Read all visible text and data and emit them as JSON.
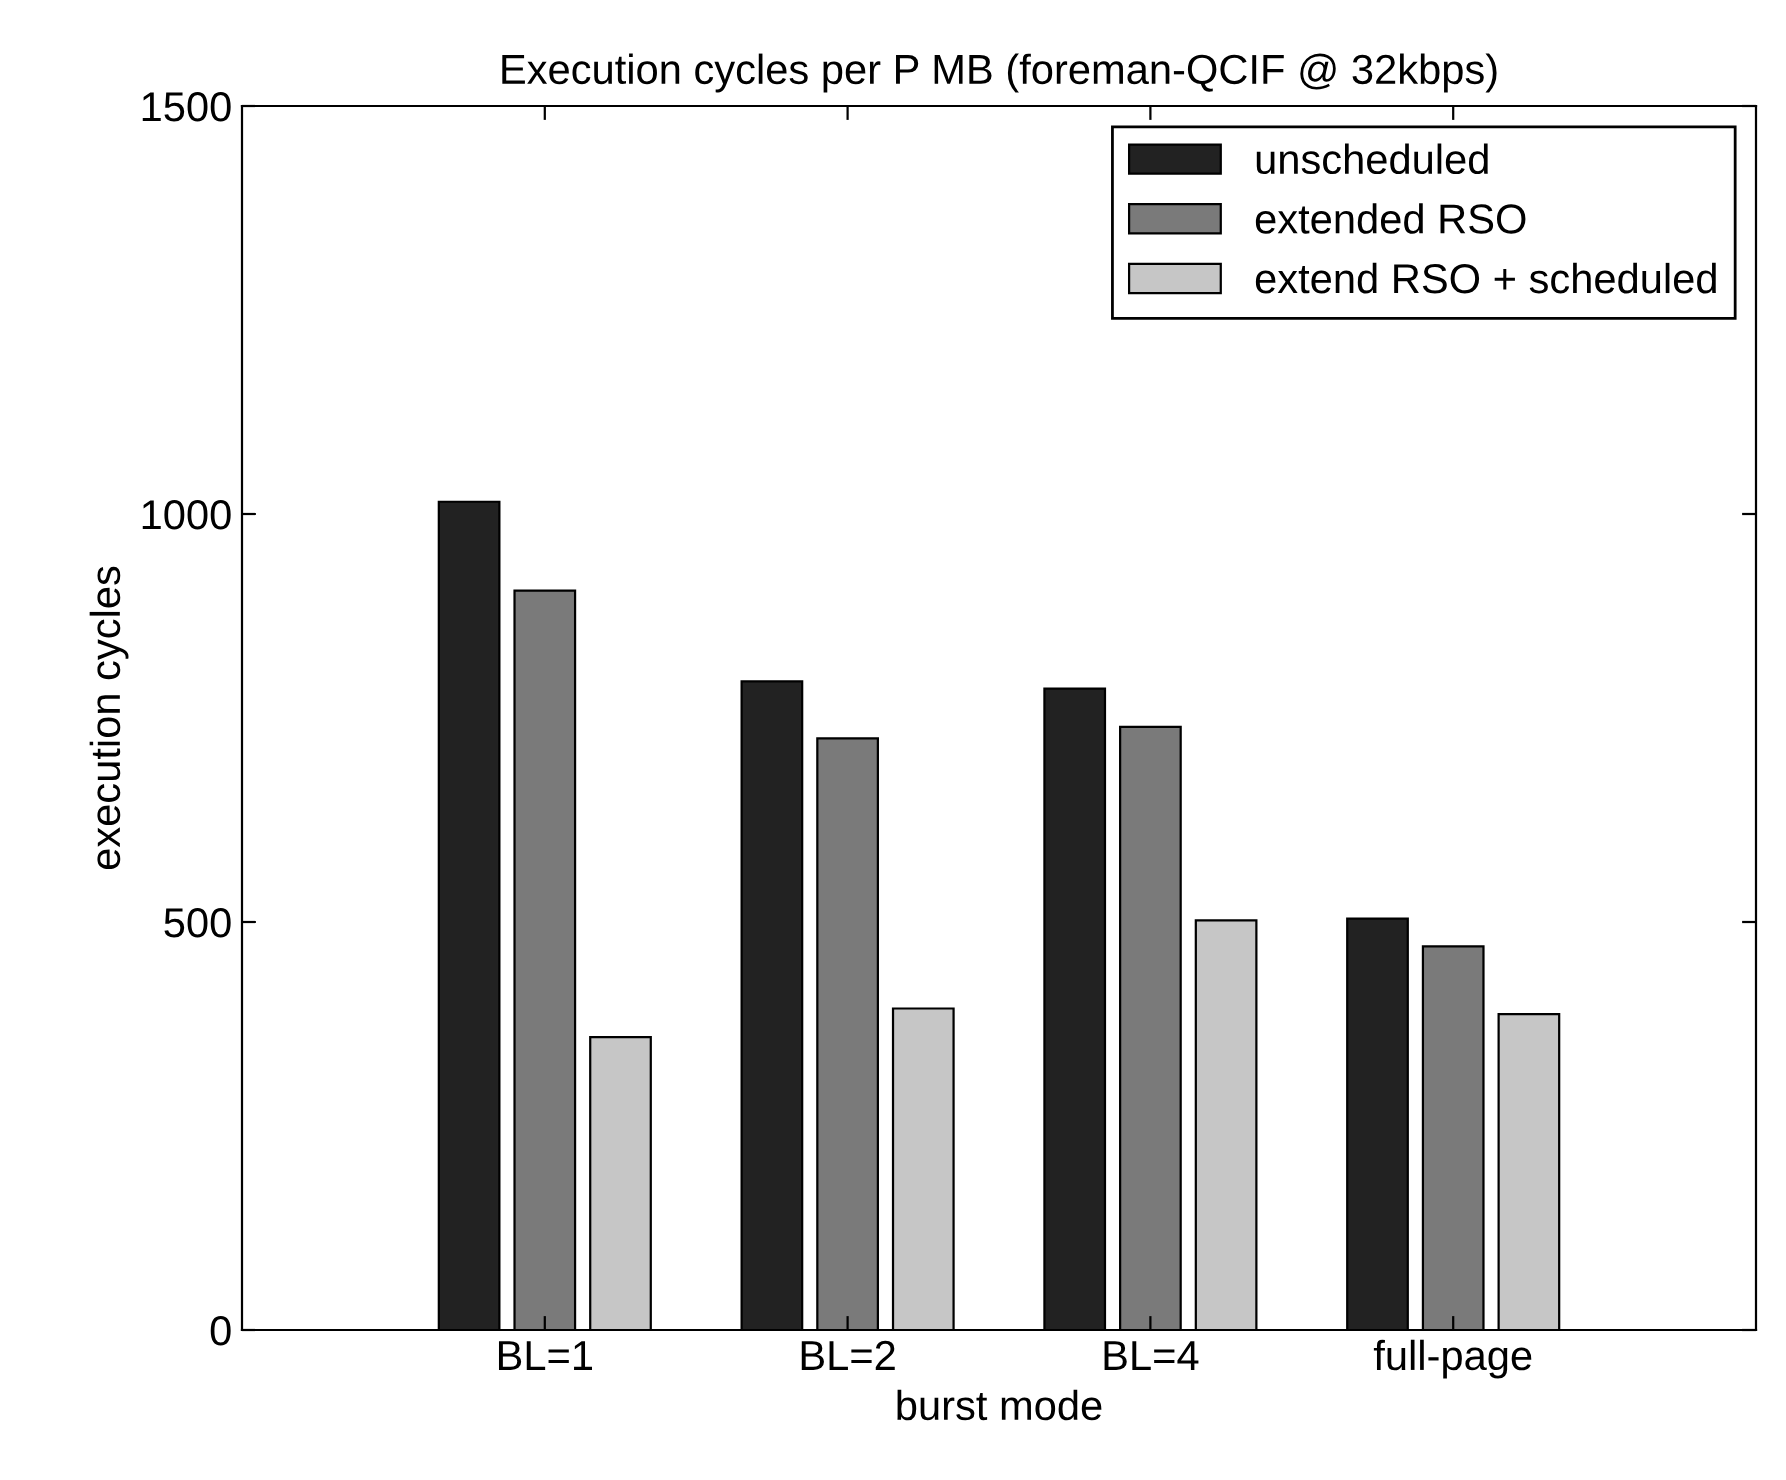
{
  "chart_data": {
    "type": "bar",
    "title": "Execution cycles per P MB (foreman-QCIF @ 32kbps)",
    "xlabel": "burst mode",
    "ylabel": "execution cycles",
    "categories": [
      "BL=1",
      "BL=2",
      "BL=4",
      "full-page"
    ],
    "series": [
      {
        "name": "unscheduled",
        "color": "#222222",
        "values": [
          1015,
          795,
          786,
          504
        ]
      },
      {
        "name": "extended RSO",
        "color": "#7a7a7a",
        "values": [
          906,
          725,
          739,
          470
        ]
      },
      {
        "name": "extend RSO + scheduled",
        "color": "#c6c6c6",
        "values": [
          359,
          394,
          502,
          387
        ]
      }
    ],
    "ylim": [
      0,
      1500
    ],
    "yticks": [
      0,
      500,
      1000,
      1500
    ],
    "grid": false,
    "legend": "top right"
  }
}
